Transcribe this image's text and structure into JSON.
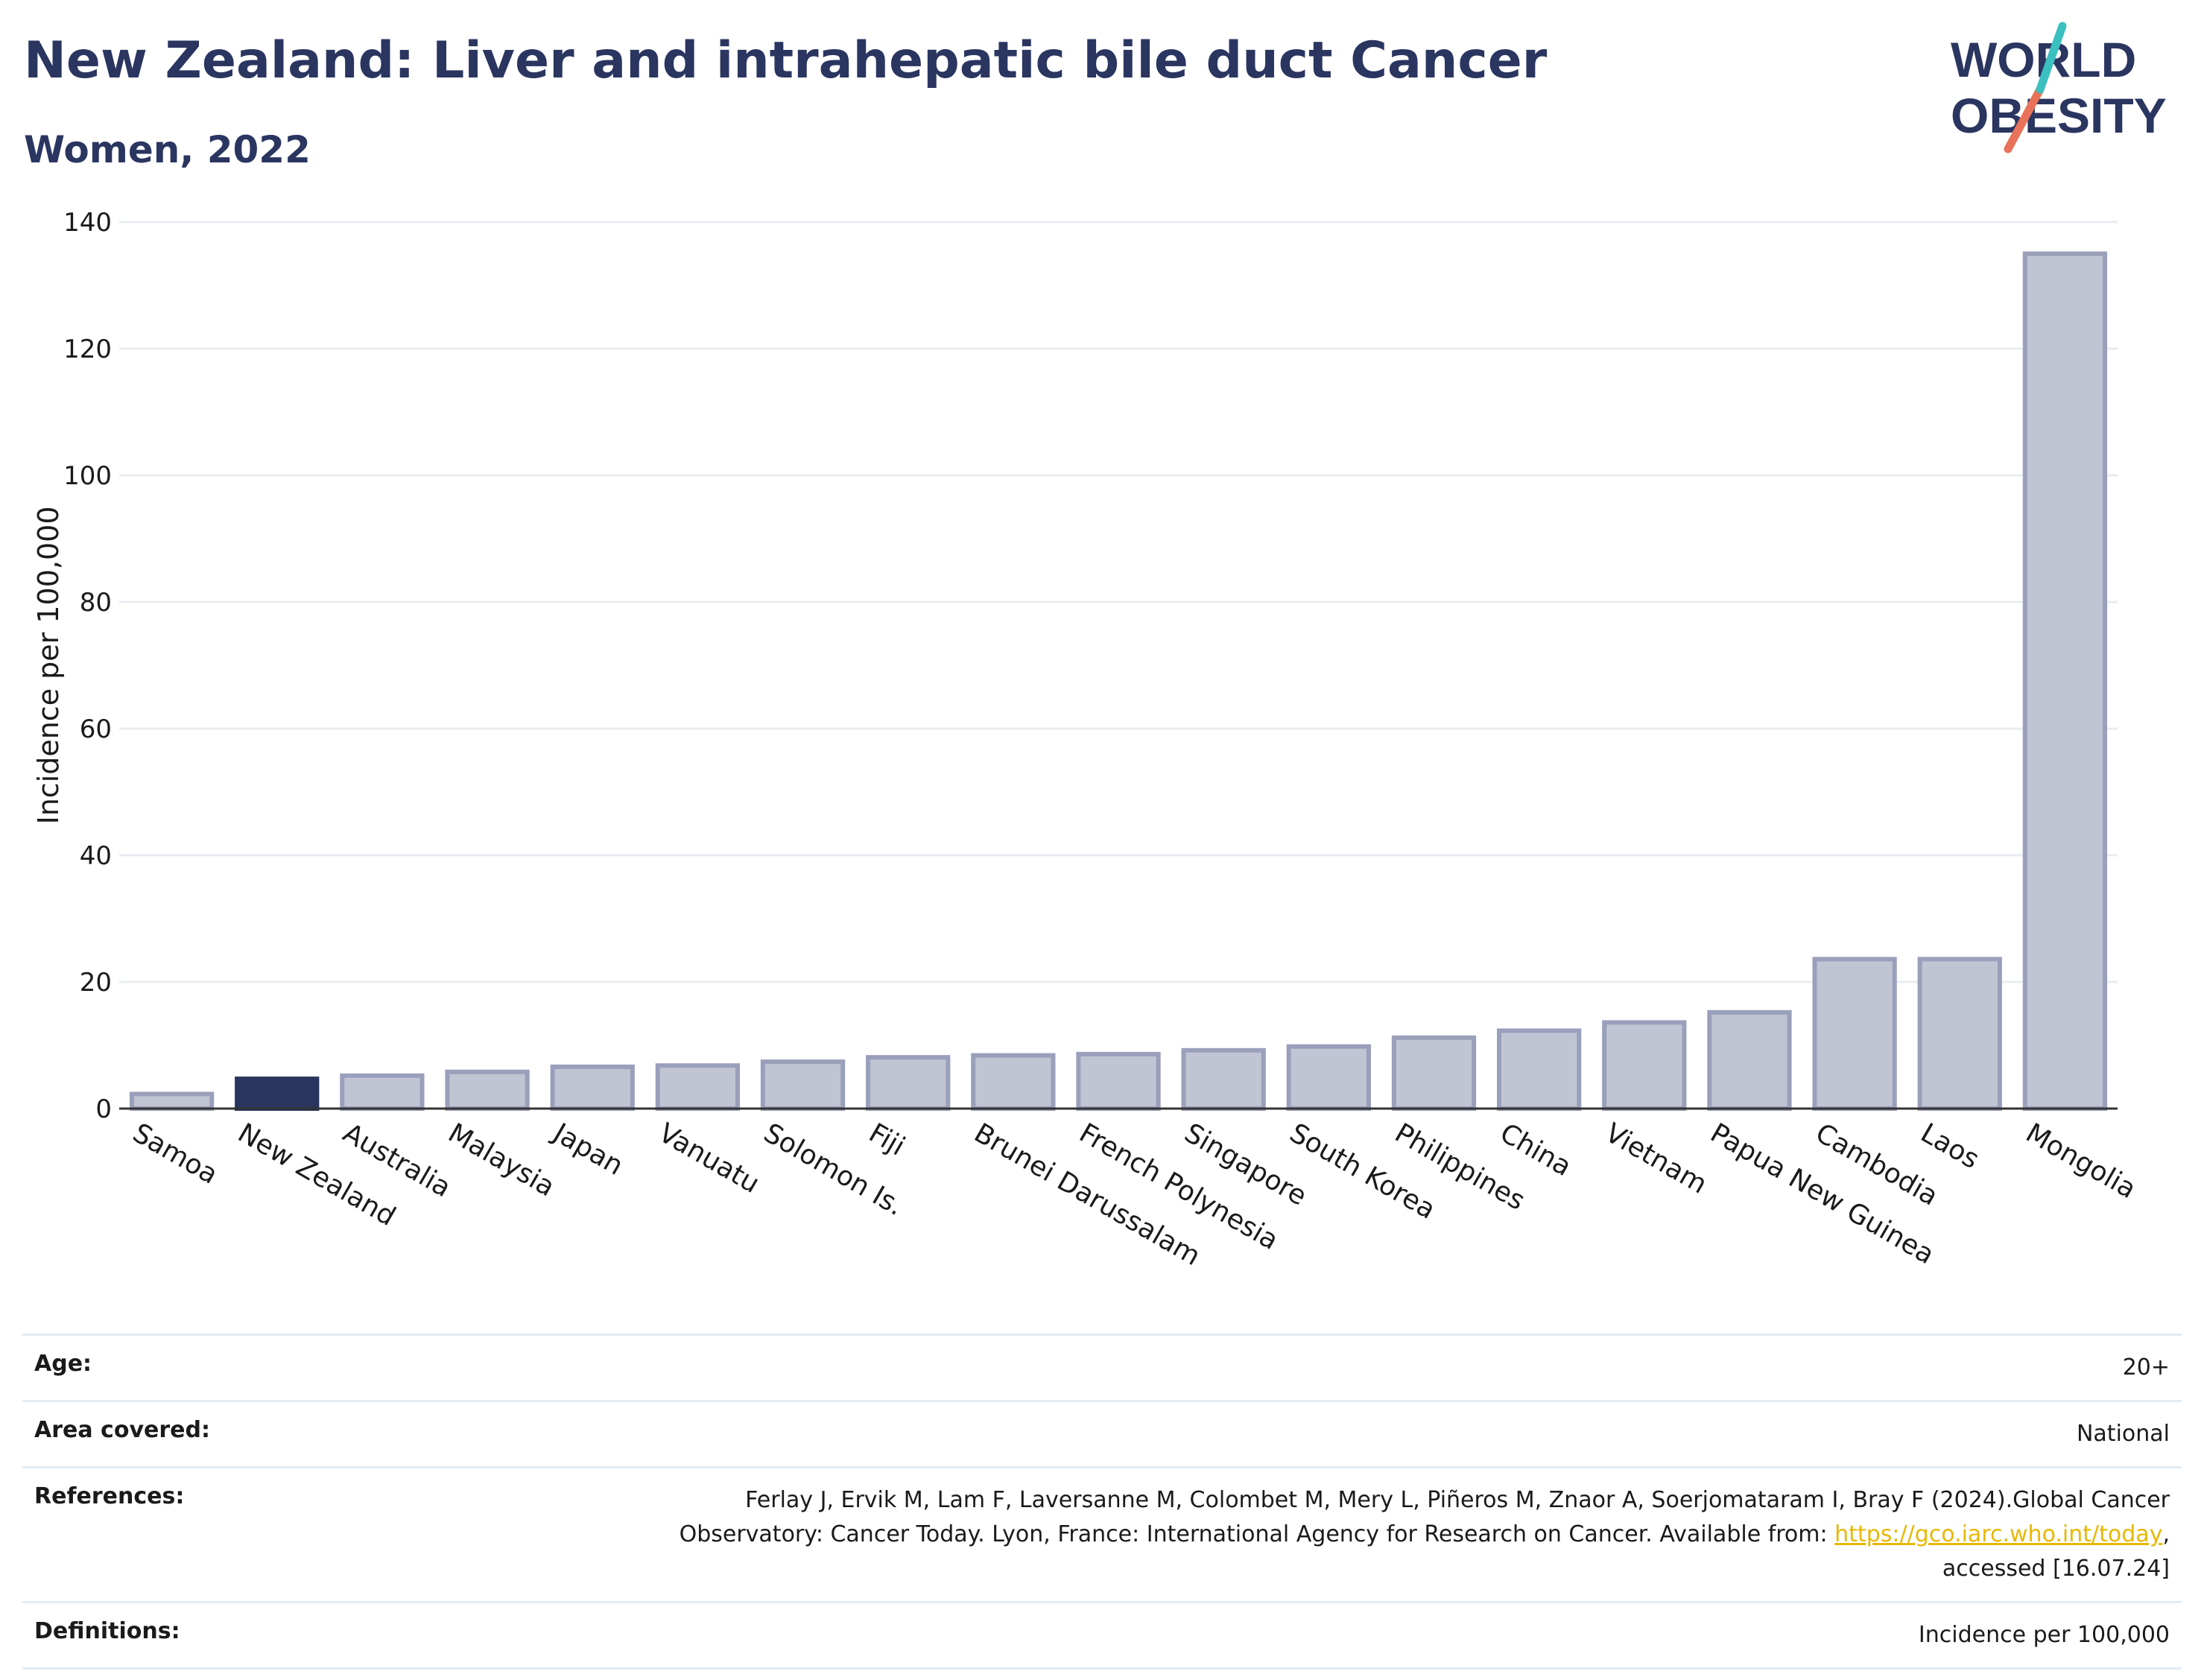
{
  "header": {
    "title": "New Zealand: Liver and intrahepatic bile duct Cancer",
    "subtitle": "Women, 2022"
  },
  "logo": {
    "line1": "WORLD",
    "line2": "OBESITY"
  },
  "chart_data": {
    "type": "bar",
    "ylabel": "Incidence per 100,000",
    "ylim": [
      0,
      140
    ],
    "yticks": [
      0,
      20,
      40,
      60,
      80,
      100,
      120,
      140
    ],
    "grid": true,
    "categories": [
      "Samoa",
      "New Zealand",
      "Australia",
      "Malaysia",
      "Japan",
      "Vanuatu",
      "Solomon Is.",
      "Fiji",
      "Brunei Darussalam",
      "French Polynesia",
      "Singapore",
      "South Korea",
      "Philippines",
      "China",
      "Vietnam",
      "Papua New Guinea",
      "Cambodia",
      "Laos",
      "Mongolia"
    ],
    "values": [
      2.3,
      4.7,
      5.2,
      5.8,
      6.6,
      6.8,
      7.4,
      8.1,
      8.4,
      8.6,
      9.2,
      9.8,
      11.2,
      12.3,
      13.6,
      15.2,
      23.6,
      23.6,
      135.0
    ],
    "highlight": "New Zealand",
    "colors": {
      "bar": "#c1c4d3",
      "bar_edge": "#9aa0bb",
      "highlight": "#2a3560",
      "grid": "#e8edf2",
      "axis": "#333333"
    }
  },
  "info": {
    "age_label": "Age:",
    "age_value": "20+",
    "area_label": "Area covered:",
    "area_value": "National",
    "references_label": "References:",
    "references_line1": "Ferlay J, Ervik M, Lam F, Laversanne M, Colombet M, Mery L, Piñeros M, Znaor A, Soerjomataram I, Bray F (2024).Global Cancer",
    "references_line2_pre": "Observatory: Cancer Today. Lyon, France: International Agency for Research on Cancer. Available from: ",
    "references_link": "https://gco.iarc.who.int/today",
    "references_line2_post": ",",
    "references_line3": "accessed [16.07.24]",
    "definitions_label": "Definitions:",
    "definitions_value": "Incidence per 100,000"
  }
}
